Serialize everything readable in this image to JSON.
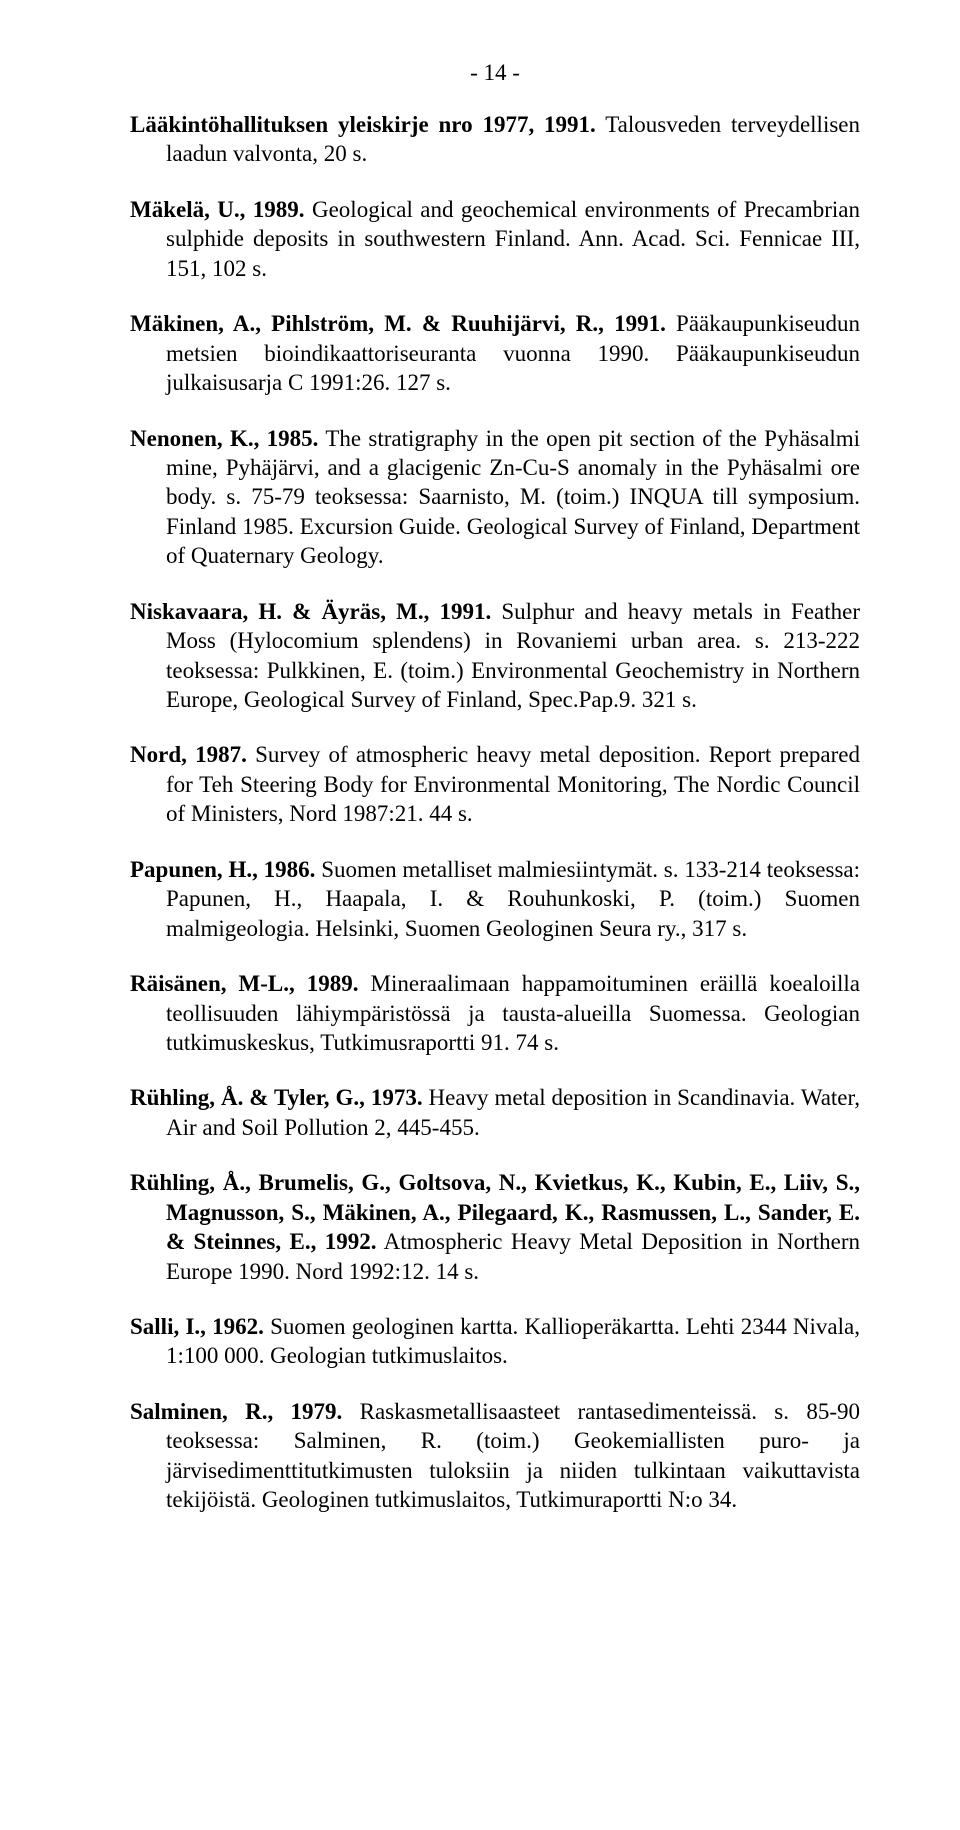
{
  "page_number": "- 14 -",
  "entries": [
    "<b>Lääkintöhallituksen yleiskirje nro 1977, 1991.</b> Talousveden terveydellisen laadun valvonta, 20 s.",
    "<b>Mäkelä, U., 1989.</b> Geological and geochemical environments of Precambrian sulphide deposits in southwestern Finland. Ann. Acad. Sci. Fennicae III, 151, 102 s.",
    "<b>Mäkinen, A., Pihlström, M. & Ruuhijärvi, R., 1991.</b> Pääkaupunkiseudun metsien bioindikaattoriseuranta vuonna 1990. Pääkaupunkiseudun julkaisusarja C 1991:26. 127 s.",
    "<b>Nenonen, K., 1985.</b> The stratigraphy in the open pit section of the Pyhäsalmi mine, Pyhäjärvi, and a glacigenic Zn-Cu-S anomaly in the Pyhäsalmi ore body. s. 75-79 teoksessa: Saarnisto, M. (toim.) INQUA till symposium. Finland 1985. Excursion Guide. Geological Survey of Finland, Department of Quaternary Geology.",
    "<b>Niskavaara, H. & Äyräs, M., 1991.</b> Sulphur and heavy metals in Feather Moss (Hylocomium splendens) in Rovaniemi urban area. s. 213-222 teoksessa: Pulkkinen, E. (toim.) Environmental Geochemistry in Northern Europe, Geological Survey of Finland, Spec.Pap.9. 321 s.",
    "<b>Nord, 1987.</b> Survey of atmospheric heavy metal deposition. Report prepared for Teh Steering Body for Environmental Monitoring, The Nordic Council of Ministers, Nord 1987:21. 44 s.",
    "<b>Papunen, H., 1986.</b> Suomen metalliset malmiesiintymät. s. 133-214 teoksessa: Papunen, H., Haapala, I. & Rouhunkoski, P. (toim.) Suomen malmigeologia. Helsinki, Suomen Geologinen Seura ry., 317 s.",
    "<b>Räisänen, M-L., 1989.</b> Mineraalimaan happamoituminen eräillä koealoilla teollisuuden lähiympäristössä ja tausta-alueilla Suomessa. Geologian tutkimuskeskus, Tutkimusraportti 91. 74 s.",
    "<b>Rühling, Å. & Tyler, G., 1973.</b> Heavy metal deposition in Scandinavia. Water, Air and Soil Pollution 2, 445-455.",
    "<b>Rühling, Å., Brumelis, G., Goltsova, N., Kvietkus, K., Kubin, E., Liiv, S., Magnusson, S., Mäkinen, A., Pilegaard, K., Rasmussen, L., Sander, E. & Steinnes, E., 1992.</b> Atmospheric Heavy Metal Deposition in Northern Europe 1990. Nord 1992:12. 14 s.",
    "<b>Salli, I., 1962.</b> Suomen geologinen kartta. Kallioperäkartta. Lehti 2344 Nivala, 1:100 000. Geologian tutkimuslaitos.",
    "<b>Salminen, R., 1979.</b> Raskasmetallisaasteet rantasedimenteissä. s. 85-90 teoksessa: Salminen, R. (toim.) Geokemiallisten puro- ja järvisedimenttitutkimusten tuloksiin ja niiden tulkintaan vaikuttavista tekijöistä. Geologinen tutkimuslaitos, Tutkimuraportti N:o 34."
  ]
}
